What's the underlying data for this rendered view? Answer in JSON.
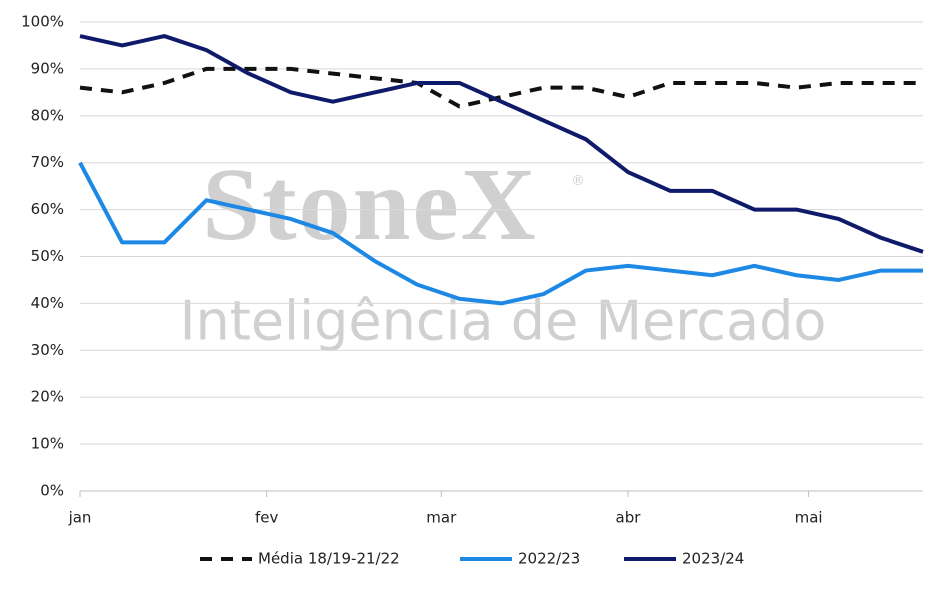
{
  "chart_data": {
    "type": "line",
    "watermark": {
      "brand": "StoneX",
      "mark": "®",
      "subtitle": "Inteligência de Mercado"
    },
    "x": [
      1,
      8,
      15,
      22,
      29,
      36,
      43,
      50,
      57,
      64,
      71,
      78,
      85,
      92,
      99,
      106,
      113,
      120,
      127,
      134,
      141
    ],
    "xlim": [
      1,
      141
    ],
    "xticks": [
      {
        "value": 1,
        "label": "jan"
      },
      {
        "value": 32,
        "label": "fev"
      },
      {
        "value": 61,
        "label": "mar"
      },
      {
        "value": 92,
        "label": "abr"
      },
      {
        "value": 122,
        "label": "mai"
      }
    ],
    "ylim": [
      0,
      100
    ],
    "yticks": [
      {
        "value": 0,
        "label": "0%"
      },
      {
        "value": 10,
        "label": "10%"
      },
      {
        "value": 20,
        "label": "20%"
      },
      {
        "value": 30,
        "label": "30%"
      },
      {
        "value": 40,
        "label": "40%"
      },
      {
        "value": 50,
        "label": "50%"
      },
      {
        "value": 60,
        "label": "60%"
      },
      {
        "value": 70,
        "label": "70%"
      },
      {
        "value": 80,
        "label": "80%"
      },
      {
        "value": 90,
        "label": "90%"
      },
      {
        "value": 100,
        "label": "100%"
      }
    ],
    "grid": true,
    "legend": "bottom",
    "series": [
      {
        "name": "Média 18/19-21/22",
        "color": "#111111",
        "dashed": true,
        "values": [
          86,
          85,
          87,
          90,
          90,
          90,
          89,
          88,
          87,
          82,
          84,
          86,
          86,
          84,
          87,
          87,
          87,
          86,
          87,
          87,
          87
        ]
      },
      {
        "name": "2022/23",
        "color": "#1e88e5",
        "dashed": false,
        "values": [
          70,
          53,
          53,
          62,
          60,
          58,
          55,
          49,
          44,
          41,
          40,
          42,
          47,
          48,
          47,
          46,
          48,
          46,
          45,
          47,
          47
        ]
      },
      {
        "name": "2023/24",
        "color": "#0f1a6b",
        "dashed": false,
        "values": [
          97,
          95,
          97,
          94,
          89,
          85,
          83,
          85,
          87,
          87,
          83,
          79,
          75,
          68,
          64,
          64,
          60,
          60,
          58,
          54,
          51
        ]
      }
    ]
  }
}
